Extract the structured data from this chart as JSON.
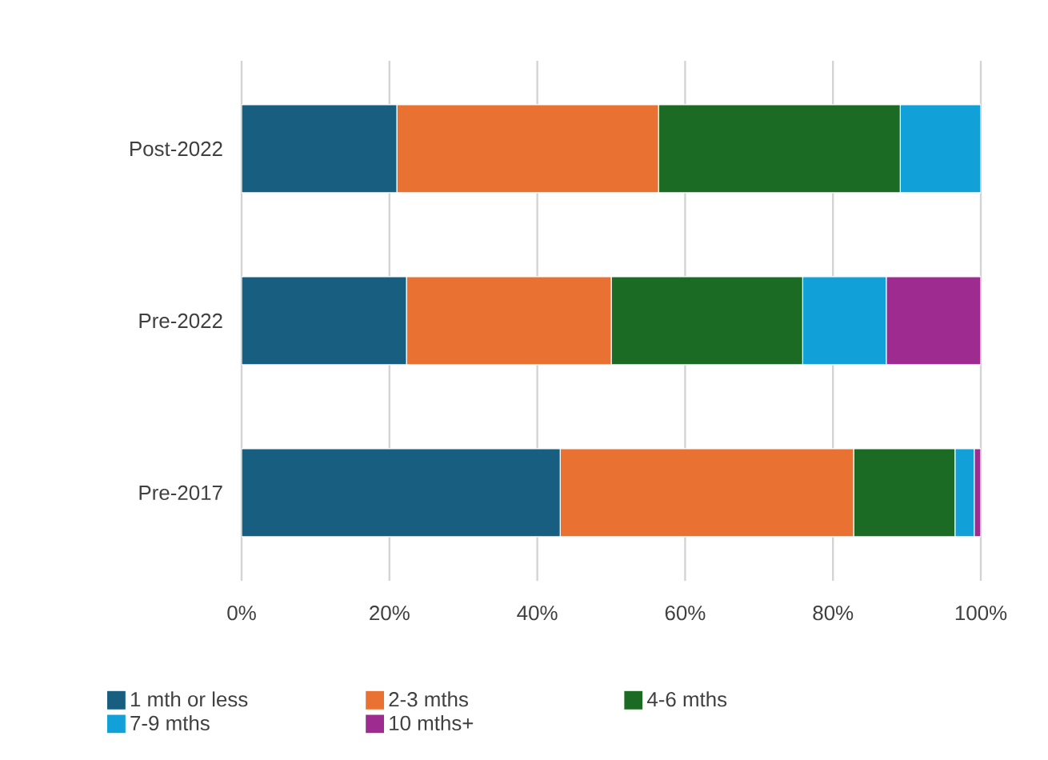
{
  "chart_data": {
    "type": "bar",
    "orientation": "horizontal",
    "stacked": true,
    "categories": [
      "Post-2022",
      "Pre-2022",
      "Pre-2017"
    ],
    "series": [
      {
        "name": "1 mth or less",
        "color": "#175e80",
        "values": [
          21.0,
          22.3,
          43.1
        ]
      },
      {
        "name": "2-3 mths",
        "color": "#e97233",
        "values": [
          35.4,
          27.7,
          39.7
        ]
      },
      {
        "name": "4-6 mths",
        "color": "#1c6b24",
        "values": [
          32.7,
          25.9,
          13.7
        ]
      },
      {
        "name": "7-9 mths",
        "color": "#11a0d7",
        "values": [
          10.9,
          11.3,
          2.6
        ]
      },
      {
        "name": "10 mths+",
        "color": "#9e2b8f",
        "values": [
          0,
          12.8,
          0.9
        ]
      }
    ],
    "xlim": [
      0,
      100
    ],
    "xticks": [
      {
        "value": 0,
        "label": "0%"
      },
      {
        "value": 20,
        "label": "20%"
      },
      {
        "value": 40,
        "label": "40%"
      },
      {
        "value": 60,
        "label": "60%"
      },
      {
        "value": 80,
        "label": "80%"
      },
      {
        "value": 100,
        "label": "100%"
      }
    ],
    "grid": "x",
    "legend": "bottom"
  }
}
